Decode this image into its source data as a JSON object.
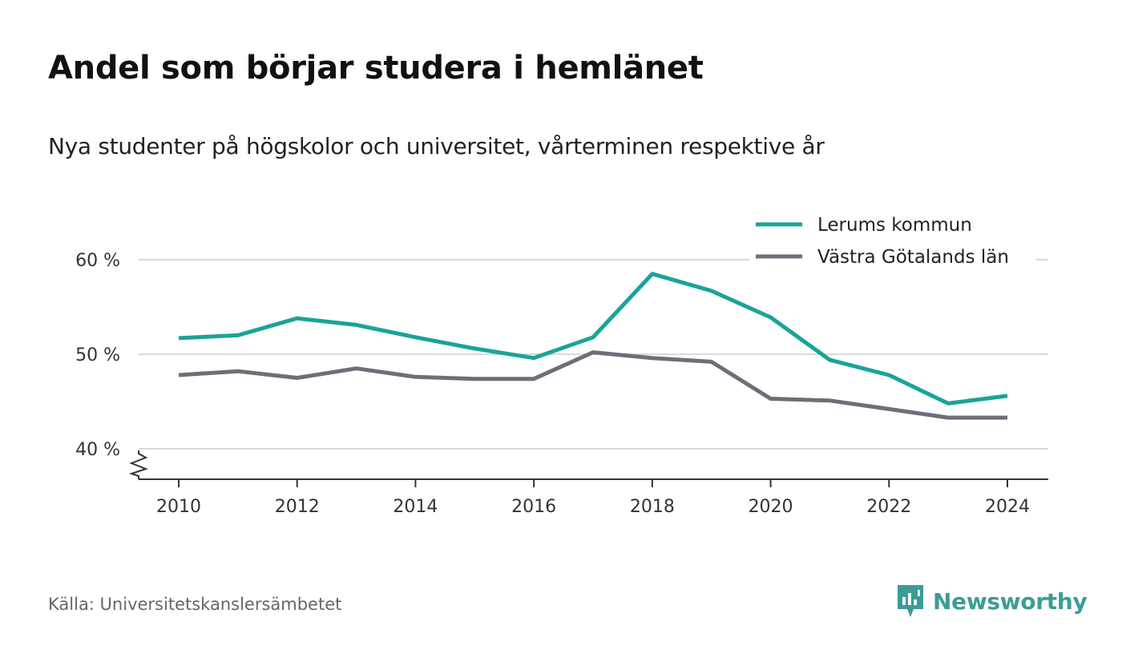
{
  "title": "Andel som börjar studera i hemlänet",
  "subtitle": "Nya studenter på högskolor och universitet, vårterminen respektive år",
  "source": "Källa: Universitetskanslersämbetet",
  "brand": {
    "name": "Newsworthy",
    "color": "#3c9c95",
    "icon": "newsworthy-logo-icon"
  },
  "chart_data": {
    "type": "line",
    "x": [
      2010,
      2011,
      2012,
      2013,
      2014,
      2015,
      2016,
      2017,
      2018,
      2019,
      2020,
      2021,
      2022,
      2023,
      2024
    ],
    "x_ticks": [
      2010,
      2012,
      2014,
      2016,
      2018,
      2020,
      2022,
      2024
    ],
    "y_ticks": [
      40,
      50,
      60
    ],
    "y_tick_labels": [
      "40 %",
      "50 %",
      "60 %"
    ],
    "ylim": [
      36.8,
      60
    ],
    "y_axis_break": true,
    "grid": true,
    "legend_position": "top-right",
    "series": [
      {
        "name": "Lerums kommun",
        "color": "#1aa399",
        "values": [
          51.7,
          52.0,
          53.8,
          53.1,
          51.8,
          50.6,
          49.6,
          51.8,
          58.5,
          56.7,
          53.9,
          49.4,
          47.8,
          44.8,
          45.6
        ]
      },
      {
        "name": "Västra Götalands län",
        "color": "#6e6e78",
        "values": [
          47.8,
          48.2,
          47.5,
          48.5,
          47.6,
          47.4,
          47.4,
          50.2,
          49.6,
          49.2,
          45.3,
          45.1,
          44.2,
          43.3,
          43.3
        ]
      }
    ]
  }
}
